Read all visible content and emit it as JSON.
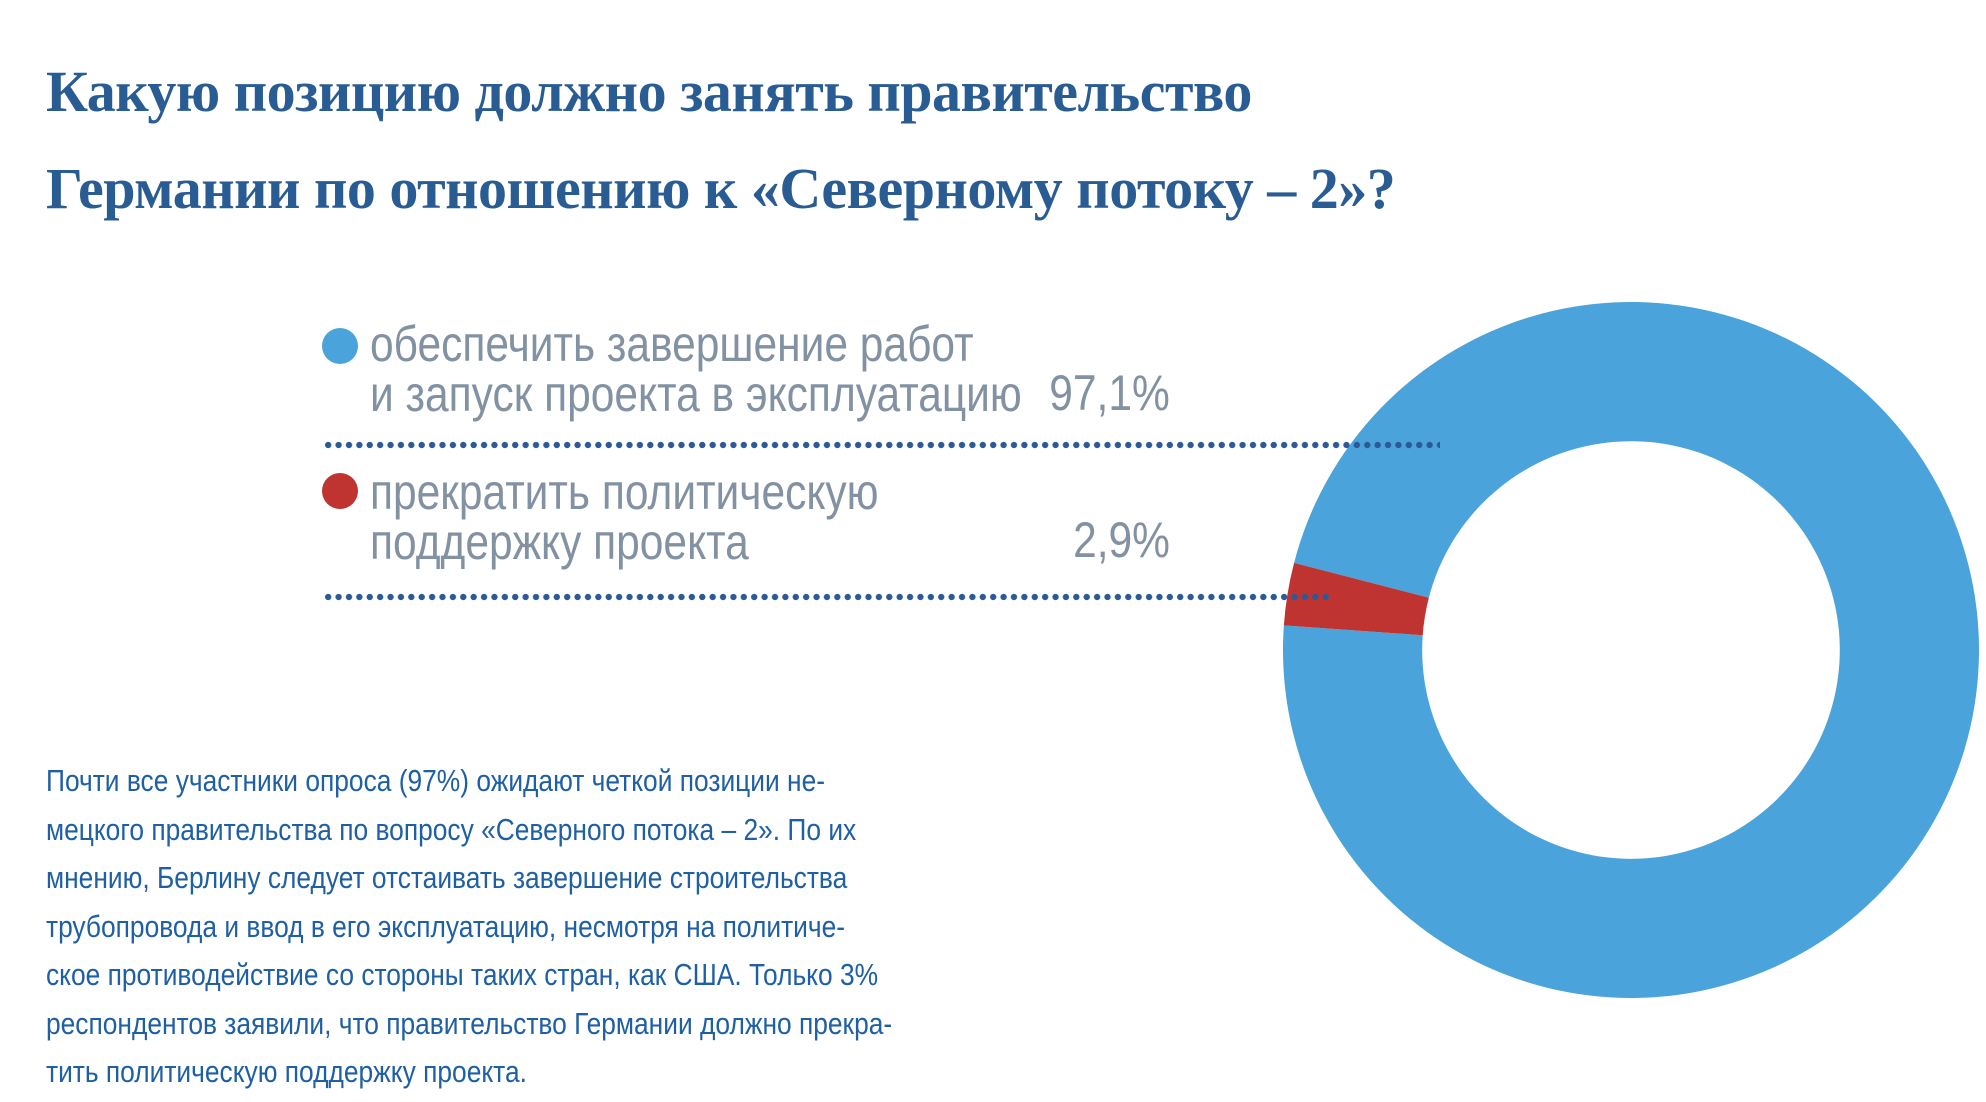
{
  "title": {
    "lines": [
      "Какую позицию должно занять правительство",
      "Германии по отношению к «Северному потоку – 2»?"
    ]
  },
  "legend": {
    "items": [
      {
        "marker": "blue-dot",
        "label_lines": [
          "обеспечить завершение работ",
          "и запуск проекта в эксплуатацию"
        ],
        "value": "97,1%"
      },
      {
        "marker": "red-dot",
        "label_lines": [
          "прекратить политическую",
          "поддержку проекта"
        ],
        "value": "2,9%"
      }
    ]
  },
  "paragraph": {
    "lines": [
      "Почти все участники опроса (97%) ожидают четкой позиции не-",
      "мецкого правительства по вопросу «Северного потока – 2». По их",
      "мнению, Берлину следует отстаивать завершение строительства",
      "трубопровода и ввод в его эксплуатацию, несмотря на политиче-",
      "ское противодействие со стороны таких стран, как США. Только 3%",
      "респондентов заявили, что правительство Германии должно прекра-",
      "тить политическую поддержку проекта."
    ]
  },
  "colors": {
    "background": "#ffffff",
    "title": "#2a5c94",
    "body_text": "#1f5fa3",
    "legend_text": "#8292a2",
    "leader_dots": "#2b5a96"
  },
  "chart_data": {
    "type": "pie",
    "donut": true,
    "title": "Какую позицию должно занять правительство Германии по отношению к «Северному потоку – 2»?",
    "categories": [
      "обеспечить завершение работ и запуск проекта в эксплуатацию",
      "прекратить политическую поддержку проекта"
    ],
    "values": [
      97.1,
      2.9
    ],
    "value_labels": [
      "97,1%",
      "2,9%"
    ],
    "colors": [
      "#4aa3db",
      "#bf3430"
    ],
    "inner_radius_ratio": 0.6,
    "start_angle_deg": 284.5,
    "legend_position": "left",
    "grid": false
  }
}
